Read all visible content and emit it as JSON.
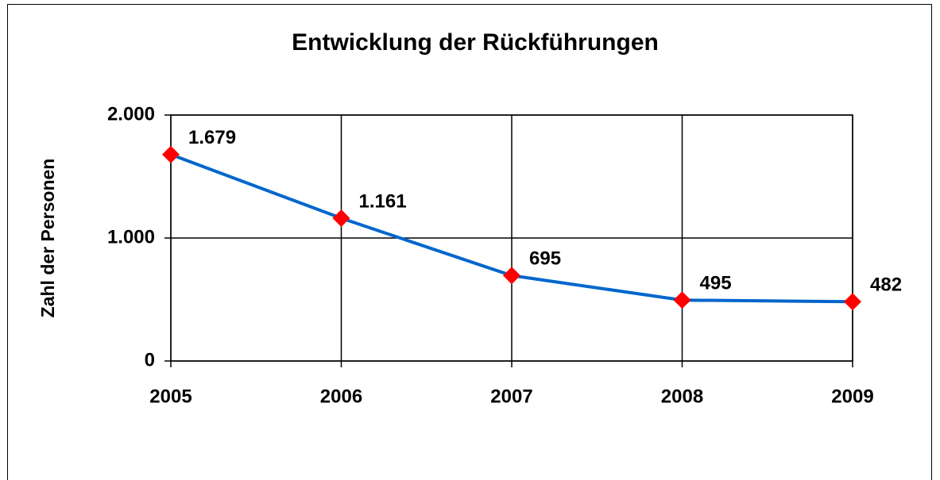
{
  "chart_data": {
    "type": "line",
    "title": "Entwicklung der Rückführungen",
    "y_label": "Zahl der Personen",
    "categories": [
      "2005",
      "2006",
      "2007",
      "2008",
      "2009"
    ],
    "series": [
      {
        "name": "Zahl der Personen",
        "color": "#0066cc",
        "marker_color": "#ff0000",
        "values": [
          1679,
          1161,
          695,
          495,
          482
        ],
        "value_labels": [
          "1.679",
          "1.161",
          "695",
          "495",
          "482"
        ]
      }
    ],
    "ylim": [
      0,
      2000
    ],
    "yticks": [
      {
        "value": 0,
        "label": "0"
      },
      {
        "value": 1000,
        "label": "1.000"
      },
      {
        "value": 2000,
        "label": "2.000"
      }
    ],
    "grid": true,
    "legend": false
  }
}
